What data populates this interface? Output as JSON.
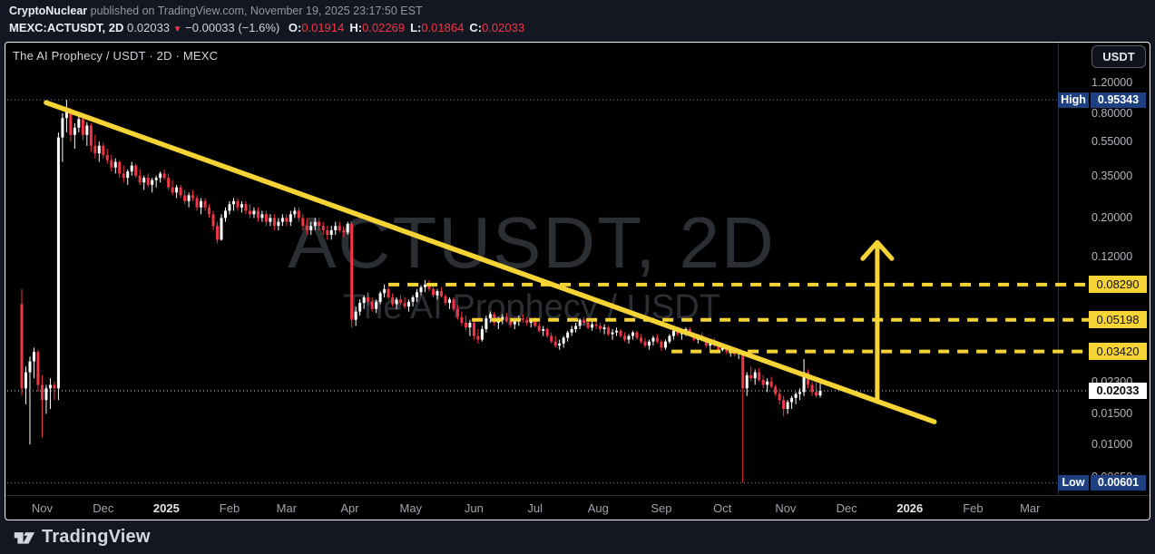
{
  "header": {
    "attribution_author": "CryptoNuclear",
    "attribution_rest": " published on TradingView.com, November 19, 2025 23:17:50 EST",
    "symbol": "MEXC:ACTUSDT, 2D",
    "last_price": "0.02033",
    "direction_icon": "▼",
    "change": "−0.00033 (−1.6%)",
    "ohlc": [
      {
        "label": "O:",
        "value": "0.01914"
      },
      {
        "label": "H:",
        "value": "0.02269"
      },
      {
        "label": "L:",
        "value": "0.01864"
      },
      {
        "label": "C:",
        "value": "0.02033"
      }
    ]
  },
  "chart": {
    "title": "The AI Prophecy / USDT · 2D · MEXC",
    "currency_button": "USDT",
    "watermark_title": "ACTUSDT, 2D",
    "watermark_subtitle": "The AI Prophecy / USDT"
  },
  "footer": {
    "brand": "TradingView"
  },
  "colors": {
    "page_bg": "#131722",
    "pane_bg": "#000000",
    "up_candle": "#ffffff",
    "down_candle": "#f23645",
    "drawing_yellow": "#f6d435",
    "badge_blue": "#1e3f80",
    "axis_text": "#b2b5be",
    "dotted_gray": "#8b909a",
    "dotted_white": "#d5d8de"
  },
  "chart_data": {
    "type": "candlestick",
    "symbol": "ACTUSDT",
    "exchange": "MEXC",
    "interval": "2D",
    "name": "The AI Prophecy / USDT",
    "scale": "log",
    "high": 0.95343,
    "low": 0.00601,
    "current_price": 0.02033,
    "price_range_visible": [
      0.005,
      1.32
    ],
    "high_label": {
      "label": "High",
      "value": "0.95343",
      "price": 0.95343
    },
    "low_label": {
      "label": "Low",
      "value": "0.00601",
      "price": 0.00601
    },
    "current_label": {
      "value": "0.02033",
      "price": 0.02033
    },
    "price_ticks": [
      {
        "label": "1.20000",
        "p": 1.2
      },
      {
        "label": "0.80000",
        "p": 0.8
      },
      {
        "label": "0.55000",
        "p": 0.55
      },
      {
        "label": "0.35000",
        "p": 0.35
      },
      {
        "label": "0.20000",
        "p": 0.2
      },
      {
        "label": "0.12000",
        "p": 0.12
      },
      {
        "label": "0.08000",
        "p": 0.08
      },
      {
        "label": "0.05500",
        "p": 0.055
      },
      {
        "label": "0.03500",
        "p": 0.035
      },
      {
        "label": "0.02300",
        "p": 0.023
      },
      {
        "label": "0.01500",
        "p": 0.015
      },
      {
        "label": "0.01000",
        "p": 0.01
      },
      {
        "label": "0.00650",
        "p": 0.0065
      }
    ],
    "level_lines": [
      {
        "label": "0.08290",
        "p": 0.0829,
        "from_t": 180
      },
      {
        "label": "0.05198",
        "p": 0.05198,
        "from_t": 221
      },
      {
        "label": "0.03420",
        "p": 0.0342,
        "from_t": 319
      }
    ],
    "time_ticks": [
      {
        "label": "Nov",
        "t": 10,
        "major": false
      },
      {
        "label": "Dec",
        "t": 40,
        "major": false
      },
      {
        "label": "2025",
        "t": 71,
        "major": true
      },
      {
        "label": "Feb",
        "t": 102,
        "major": false
      },
      {
        "label": "Mar",
        "t": 130,
        "major": false
      },
      {
        "label": "Apr",
        "t": 161,
        "major": false
      },
      {
        "label": "May",
        "t": 191,
        "major": false
      },
      {
        "label": "Jun",
        "t": 222,
        "major": false
      },
      {
        "label": "Jul",
        "t": 252,
        "major": false
      },
      {
        "label": "Aug",
        "t": 283,
        "major": false
      },
      {
        "label": "Sep",
        "t": 314,
        "major": false
      },
      {
        "label": "Oct",
        "t": 344,
        "major": false
      },
      {
        "label": "Nov",
        "t": 375,
        "major": false
      },
      {
        "label": "Dec",
        "t": 405,
        "major": false
      },
      {
        "label": "2026",
        "t": 436,
        "major": true
      },
      {
        "label": "Feb",
        "t": 467,
        "major": false
      },
      {
        "label": "Mar",
        "t": 495,
        "major": false
      }
    ],
    "trendline": {
      "t1": 12,
      "p1": 0.92,
      "t2": 448,
      "p2": 0.0135
    },
    "arrow_up": {
      "t": 420,
      "p_from": 0.0176,
      "p_to": 0.145
    },
    "candle_interval_days": 2,
    "candles": [
      [
        0.064,
        0.078,
        0.019,
        0.021
      ],
      [
        0.021,
        0.028,
        0.017,
        0.026
      ],
      [
        0.026,
        0.032,
        0.01,
        0.03
      ],
      [
        0.03,
        0.036,
        0.024,
        0.034
      ],
      [
        0.034,
        0.035,
        0.02,
        0.022
      ],
      [
        0.022,
        0.025,
        0.011,
        0.018
      ],
      [
        0.018,
        0.022,
        0.015,
        0.021
      ],
      [
        0.021,
        0.024,
        0.016,
        0.022
      ],
      [
        0.022,
        0.023,
        0.018,
        0.021
      ],
      [
        0.021,
        0.62,
        0.018,
        0.58
      ],
      [
        0.58,
        0.8,
        0.42,
        0.75
      ],
      [
        0.75,
        0.95343,
        0.62,
        0.82
      ],
      [
        0.82,
        0.86,
        0.55,
        0.6
      ],
      [
        0.6,
        0.7,
        0.5,
        0.66
      ],
      [
        0.66,
        0.78,
        0.62,
        0.74
      ],
      [
        0.74,
        0.8,
        0.56,
        0.6
      ],
      [
        0.6,
        0.71,
        0.52,
        0.68
      ],
      [
        0.68,
        0.7,
        0.48,
        0.52
      ],
      [
        0.52,
        0.6,
        0.44,
        0.47
      ],
      [
        0.47,
        0.55,
        0.42,
        0.52
      ],
      [
        0.52,
        0.54,
        0.44,
        0.46
      ],
      [
        0.46,
        0.5,
        0.41,
        0.43
      ],
      [
        0.43,
        0.46,
        0.37,
        0.39
      ],
      [
        0.39,
        0.44,
        0.36,
        0.42
      ],
      [
        0.42,
        0.43,
        0.34,
        0.36
      ],
      [
        0.36,
        0.4,
        0.32,
        0.34
      ],
      [
        0.34,
        0.38,
        0.31,
        0.37
      ],
      [
        0.37,
        0.42,
        0.35,
        0.4
      ],
      [
        0.4,
        0.41,
        0.34,
        0.35
      ],
      [
        0.35,
        0.38,
        0.31,
        0.32
      ],
      [
        0.32,
        0.35,
        0.29,
        0.34
      ],
      [
        0.34,
        0.36,
        0.3,
        0.31
      ],
      [
        0.31,
        0.34,
        0.28,
        0.33
      ],
      [
        0.33,
        0.35,
        0.3,
        0.34
      ],
      [
        0.34,
        0.37,
        0.32,
        0.36
      ],
      [
        0.36,
        0.38,
        0.33,
        0.34
      ],
      [
        0.34,
        0.36,
        0.29,
        0.3
      ],
      [
        0.3,
        0.33,
        0.27,
        0.28
      ],
      [
        0.28,
        0.31,
        0.26,
        0.3
      ],
      [
        0.3,
        0.31,
        0.26,
        0.27
      ],
      [
        0.27,
        0.29,
        0.24,
        0.25
      ],
      [
        0.25,
        0.28,
        0.23,
        0.27
      ],
      [
        0.27,
        0.29,
        0.25,
        0.26
      ],
      [
        0.26,
        0.27,
        0.22,
        0.23
      ],
      [
        0.23,
        0.26,
        0.21,
        0.25
      ],
      [
        0.25,
        0.26,
        0.22,
        0.23
      ],
      [
        0.23,
        0.24,
        0.2,
        0.21
      ],
      [
        0.21,
        0.22,
        0.17,
        0.18
      ],
      [
        0.18,
        0.19,
        0.143,
        0.15
      ],
      [
        0.15,
        0.21,
        0.148,
        0.2
      ],
      [
        0.2,
        0.23,
        0.19,
        0.22
      ],
      [
        0.22,
        0.25,
        0.21,
        0.24
      ],
      [
        0.24,
        0.26,
        0.22,
        0.25
      ],
      [
        0.25,
        0.26,
        0.22,
        0.23
      ],
      [
        0.23,
        0.25,
        0.215,
        0.24
      ],
      [
        0.24,
        0.25,
        0.21,
        0.22
      ],
      [
        0.22,
        0.24,
        0.2,
        0.21
      ],
      [
        0.21,
        0.23,
        0.2,
        0.22
      ],
      [
        0.22,
        0.23,
        0.19,
        0.2
      ],
      [
        0.2,
        0.22,
        0.19,
        0.21
      ],
      [
        0.21,
        0.22,
        0.18,
        0.19
      ],
      [
        0.19,
        0.21,
        0.18,
        0.2
      ],
      [
        0.2,
        0.21,
        0.17,
        0.18
      ],
      [
        0.18,
        0.2,
        0.17,
        0.19
      ],
      [
        0.19,
        0.21,
        0.18,
        0.2
      ],
      [
        0.2,
        0.21,
        0.18,
        0.19
      ],
      [
        0.19,
        0.22,
        0.18,
        0.21
      ],
      [
        0.21,
        0.23,
        0.2,
        0.22
      ],
      [
        0.22,
        0.23,
        0.19,
        0.2
      ],
      [
        0.2,
        0.21,
        0.17,
        0.18
      ],
      [
        0.18,
        0.2,
        0.16,
        0.17
      ],
      [
        0.17,
        0.19,
        0.16,
        0.18
      ],
      [
        0.18,
        0.2,
        0.17,
        0.19
      ],
      [
        0.19,
        0.2,
        0.17,
        0.18
      ],
      [
        0.18,
        0.19,
        0.16,
        0.17
      ],
      [
        0.17,
        0.18,
        0.15,
        0.16
      ],
      [
        0.16,
        0.18,
        0.15,
        0.17
      ],
      [
        0.17,
        0.19,
        0.16,
        0.18
      ],
      [
        0.18,
        0.19,
        0.165,
        0.17
      ],
      [
        0.17,
        0.18,
        0.155,
        0.165
      ],
      [
        0.165,
        0.19,
        0.16,
        0.185
      ],
      [
        0.185,
        0.19,
        0.047,
        0.052
      ],
      [
        0.052,
        0.062,
        0.048,
        0.058
      ],
      [
        0.058,
        0.068,
        0.055,
        0.065
      ],
      [
        0.065,
        0.072,
        0.06,
        0.07
      ],
      [
        0.07,
        0.075,
        0.063,
        0.066
      ],
      [
        0.066,
        0.07,
        0.058,
        0.06
      ],
      [
        0.06,
        0.068,
        0.057,
        0.066
      ],
      [
        0.066,
        0.076,
        0.064,
        0.074
      ],
      [
        0.074,
        0.083,
        0.07,
        0.078
      ],
      [
        0.078,
        0.08,
        0.068,
        0.07
      ],
      [
        0.07,
        0.074,
        0.062,
        0.064
      ],
      [
        0.064,
        0.07,
        0.06,
        0.068
      ],
      [
        0.068,
        0.072,
        0.063,
        0.065
      ],
      [
        0.065,
        0.07,
        0.06,
        0.062
      ],
      [
        0.062,
        0.068,
        0.058,
        0.066
      ],
      [
        0.066,
        0.072,
        0.062,
        0.07
      ],
      [
        0.07,
        0.078,
        0.066,
        0.075
      ],
      [
        0.075,
        0.082,
        0.072,
        0.08
      ],
      [
        0.08,
        0.088,
        0.075,
        0.083
      ],
      [
        0.083,
        0.088,
        0.076,
        0.078
      ],
      [
        0.078,
        0.081,
        0.07,
        0.072
      ],
      [
        0.072,
        0.078,
        0.068,
        0.076
      ],
      [
        0.076,
        0.08,
        0.07,
        0.071
      ],
      [
        0.071,
        0.073,
        0.063,
        0.065
      ],
      [
        0.065,
        0.07,
        0.06,
        0.068
      ],
      [
        0.068,
        0.07,
        0.058,
        0.06
      ],
      [
        0.06,
        0.063,
        0.052,
        0.054
      ],
      [
        0.054,
        0.058,
        0.048,
        0.05
      ],
      [
        0.05,
        0.055,
        0.045,
        0.047
      ],
      [
        0.047,
        0.052,
        0.042,
        0.05
      ],
      [
        0.05,
        0.051,
        0.04,
        0.042
      ],
      [
        0.042,
        0.046,
        0.038,
        0.04
      ],
      [
        0.04,
        0.048,
        0.039,
        0.046
      ],
      [
        0.046,
        0.055,
        0.044,
        0.053
      ],
      [
        0.053,
        0.058,
        0.05,
        0.056
      ],
      [
        0.056,
        0.058,
        0.048,
        0.05
      ],
      [
        0.05,
        0.054,
        0.046,
        0.052
      ],
      [
        0.052,
        0.056,
        0.049,
        0.054
      ],
      [
        0.054,
        0.057,
        0.05,
        0.051
      ],
      [
        0.051,
        0.054,
        0.047,
        0.049
      ],
      [
        0.049,
        0.053,
        0.046,
        0.051
      ],
      [
        0.051,
        0.055,
        0.048,
        0.053
      ],
      [
        0.053,
        0.056,
        0.05,
        0.052
      ],
      [
        0.052,
        0.054,
        0.048,
        0.05
      ],
      [
        0.05,
        0.053,
        0.047,
        0.052
      ],
      [
        0.052,
        0.054,
        0.047,
        0.048
      ],
      [
        0.048,
        0.05,
        0.044,
        0.045
      ],
      [
        0.045,
        0.048,
        0.042,
        0.046
      ],
      [
        0.046,
        0.047,
        0.041,
        0.042
      ],
      [
        0.042,
        0.044,
        0.038,
        0.039
      ],
      [
        0.039,
        0.042,
        0.036,
        0.037
      ],
      [
        0.037,
        0.04,
        0.035,
        0.038
      ],
      [
        0.038,
        0.042,
        0.036,
        0.041
      ],
      [
        0.041,
        0.045,
        0.039,
        0.044
      ],
      [
        0.044,
        0.048,
        0.042,
        0.046
      ],
      [
        0.046,
        0.05,
        0.044,
        0.048
      ],
      [
        0.048,
        0.053,
        0.046,
        0.052
      ],
      [
        0.052,
        0.054,
        0.048,
        0.05
      ],
      [
        0.05,
        0.052,
        0.046,
        0.047
      ],
      [
        0.047,
        0.051,
        0.045,
        0.049
      ],
      [
        0.049,
        0.052,
        0.046,
        0.048
      ],
      [
        0.048,
        0.05,
        0.044,
        0.046
      ],
      [
        0.046,
        0.049,
        0.043,
        0.047
      ],
      [
        0.047,
        0.048,
        0.042,
        0.043
      ],
      [
        0.043,
        0.046,
        0.04,
        0.044
      ],
      [
        0.044,
        0.047,
        0.042,
        0.045
      ],
      [
        0.045,
        0.046,
        0.041,
        0.042
      ],
      [
        0.042,
        0.044,
        0.039,
        0.04
      ],
      [
        0.04,
        0.043,
        0.038,
        0.042
      ],
      [
        0.042,
        0.045,
        0.04,
        0.044
      ],
      [
        0.044,
        0.045,
        0.04,
        0.041
      ],
      [
        0.041,
        0.043,
        0.038,
        0.039
      ],
      [
        0.039,
        0.041,
        0.036,
        0.037
      ],
      [
        0.037,
        0.04,
        0.035,
        0.039
      ],
      [
        0.039,
        0.042,
        0.037,
        0.041
      ],
      [
        0.041,
        0.043,
        0.038,
        0.039
      ],
      [
        0.039,
        0.04,
        0.0345,
        0.036
      ],
      [
        0.036,
        0.04,
        0.035,
        0.039
      ],
      [
        0.039,
        0.043,
        0.038,
        0.042
      ],
      [
        0.042,
        0.046,
        0.04,
        0.045
      ],
      [
        0.045,
        0.047,
        0.042,
        0.043
      ],
      [
        0.043,
        0.045,
        0.04,
        0.044
      ],
      [
        0.044,
        0.047,
        0.042,
        0.046
      ],
      [
        0.046,
        0.047,
        0.042,
        0.043
      ],
      [
        0.043,
        0.044,
        0.039,
        0.04
      ],
      [
        0.04,
        0.043,
        0.038,
        0.042
      ],
      [
        0.042,
        0.044,
        0.039,
        0.04
      ],
      [
        0.04,
        0.041,
        0.036,
        0.037
      ],
      [
        0.037,
        0.04,
        0.035,
        0.039
      ],
      [
        0.039,
        0.041,
        0.036,
        0.037
      ],
      [
        0.037,
        0.038,
        0.034,
        0.035
      ],
      [
        0.035,
        0.037,
        0.0342,
        0.036
      ],
      [
        0.036,
        0.037,
        0.033,
        0.034
      ],
      [
        0.034,
        0.036,
        0.032,
        0.035
      ],
      [
        0.035,
        0.036,
        0.032,
        0.033
      ],
      [
        0.033,
        0.035,
        0.031,
        0.034
      ],
      [
        0.034,
        0.034,
        0.00601,
        0.021
      ],
      [
        0.021,
        0.026,
        0.019,
        0.025
      ],
      [
        0.025,
        0.028,
        0.023,
        0.024
      ],
      [
        0.024,
        0.027,
        0.022,
        0.026
      ],
      [
        0.026,
        0.0275,
        0.023,
        0.0235
      ],
      [
        0.0235,
        0.025,
        0.021,
        0.022
      ],
      [
        0.022,
        0.024,
        0.02,
        0.023
      ],
      [
        0.023,
        0.0245,
        0.021,
        0.0215
      ],
      [
        0.0215,
        0.022,
        0.019,
        0.0195
      ],
      [
        0.0195,
        0.021,
        0.017,
        0.018
      ],
      [
        0.018,
        0.019,
        0.0145,
        0.016
      ],
      [
        0.016,
        0.018,
        0.015,
        0.0175
      ],
      [
        0.0175,
        0.019,
        0.016,
        0.0185
      ],
      [
        0.0185,
        0.02,
        0.017,
        0.0195
      ],
      [
        0.0195,
        0.021,
        0.018,
        0.02
      ],
      [
        0.02,
        0.031,
        0.019,
        0.026
      ],
      [
        0.026,
        0.027,
        0.021,
        0.022
      ],
      [
        0.022,
        0.023,
        0.019,
        0.02
      ],
      [
        0.02,
        0.0227,
        0.0186,
        0.0191
      ],
      [
        0.01914,
        0.02269,
        0.01864,
        0.02033
      ]
    ]
  }
}
